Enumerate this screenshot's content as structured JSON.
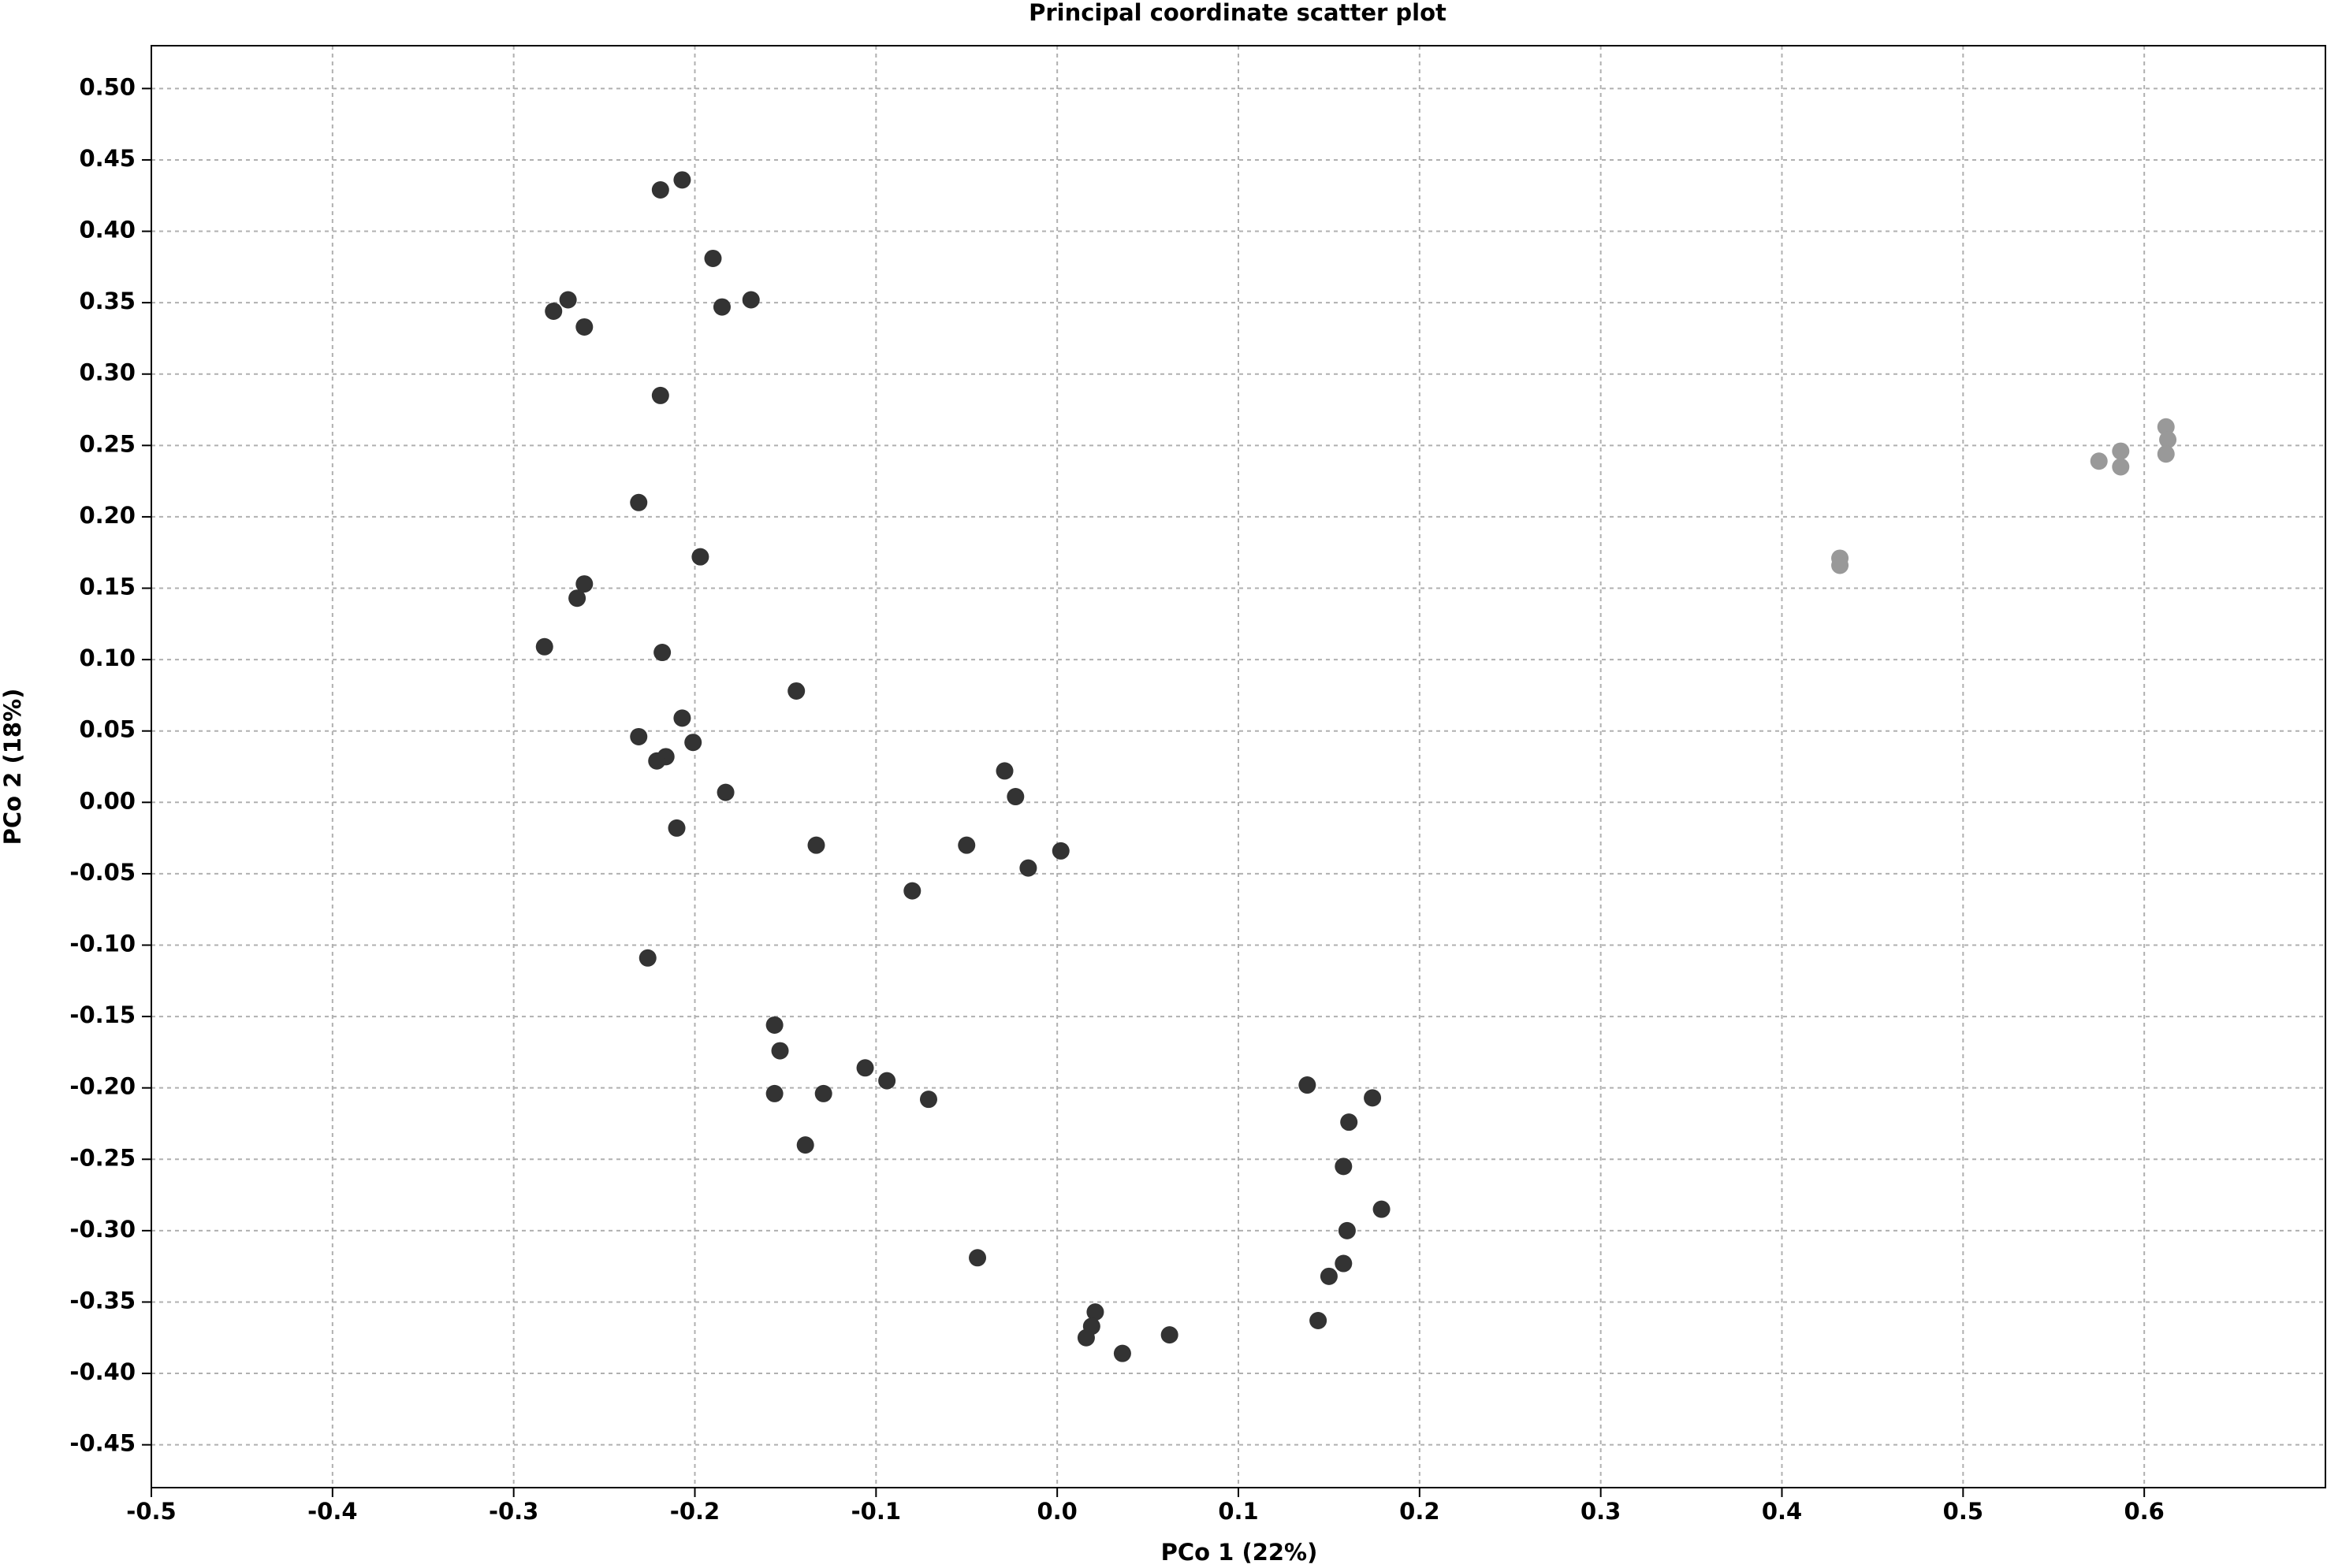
{
  "chart_data": {
    "type": "scatter",
    "title": "Principal coordinate scatter plot",
    "x_label": "PCo 1 (22%)",
    "y_label": "PCo 2 (18%)",
    "xlim": [
      -0.5,
      0.7
    ],
    "ylim": [
      -0.48,
      0.53
    ],
    "grid": true,
    "xticks": [
      -0.5,
      -0.4,
      -0.3,
      -0.2,
      -0.1,
      {
        "value": 0,
        "label": "0.0"
      },
      0.1,
      0.2,
      0.3,
      0.4,
      0.5,
      0.6
    ],
    "yticks": [
      {
        "value": 0.5,
        "label": "0.50"
      },
      0.45,
      {
        "value": 0.4,
        "label": "0.40"
      },
      0.35,
      {
        "value": 0.3,
        "label": "0.30"
      },
      0.25,
      {
        "value": 0.2,
        "label": "0.20"
      },
      0.15,
      {
        "value": 0.1,
        "label": "0.10"
      },
      0.05,
      {
        "value": 0,
        "label": "0.00"
      },
      -0.05,
      {
        "value": -0.1,
        "label": "-0.10"
      },
      -0.15,
      {
        "value": -0.2,
        "label": "-0.20"
      },
      -0.25,
      {
        "value": -0.3,
        "label": "-0.30"
      },
      -0.35,
      {
        "value": -0.4,
        "label": "-0.40"
      },
      -0.45
    ],
    "series": [
      {
        "color": "#333333",
        "x": [
          -0.219,
          -0.207,
          -0.19,
          -0.169,
          -0.185,
          -0.27,
          -0.278,
          -0.261,
          -0.219,
          -0.231,
          -0.197,
          -0.261,
          -0.265,
          -0.283,
          -0.218,
          -0.144,
          -0.207,
          -0.231,
          -0.201,
          -0.216,
          -0.221,
          -0.183,
          -0.21,
          -0.133,
          -0.029,
          -0.023,
          -0.05,
          -0.016,
          0.002,
          -0.08,
          -0.226,
          -0.156,
          -0.153,
          -0.156,
          -0.129,
          -0.106,
          -0.094,
          -0.071,
          -0.139,
          -0.044,
          0.021,
          0.019,
          0.016,
          0.036,
          0.062,
          0.138,
          0.174,
          0.161,
          0.158,
          0.179,
          0.16,
          0.158,
          0.15,
          0.144
        ],
        "values": [
          0.429,
          0.436,
          0.381,
          0.352,
          0.347,
          0.352,
          0.344,
          0.333,
          0.285,
          0.21,
          0.172,
          0.153,
          0.143,
          0.109,
          0.105,
          0.078,
          0.059,
          0.046,
          0.042,
          0.032,
          0.029,
          0.007,
          -0.018,
          -0.03,
          0.022,
          0.004,
          -0.03,
          -0.046,
          -0.034,
          -0.062,
          -0.109,
          -0.156,
          -0.174,
          -0.204,
          -0.204,
          -0.186,
          -0.195,
          -0.208,
          -0.24,
          -0.319,
          -0.357,
          -0.367,
          -0.375,
          -0.386,
          -0.373,
          -0.198,
          -0.207,
          -0.224,
          -0.255,
          -0.285,
          -0.3,
          -0.323,
          -0.332,
          -0.363
        ]
      },
      {
        "color": "#999999",
        "x": [
          0.432,
          0.432,
          0.587,
          0.587,
          0.575,
          0.612,
          0.613,
          0.612
        ],
        "values": [
          0.171,
          0.166,
          0.246,
          0.235,
          0.239,
          0.263,
          0.254,
          0.244
        ]
      }
    ]
  }
}
